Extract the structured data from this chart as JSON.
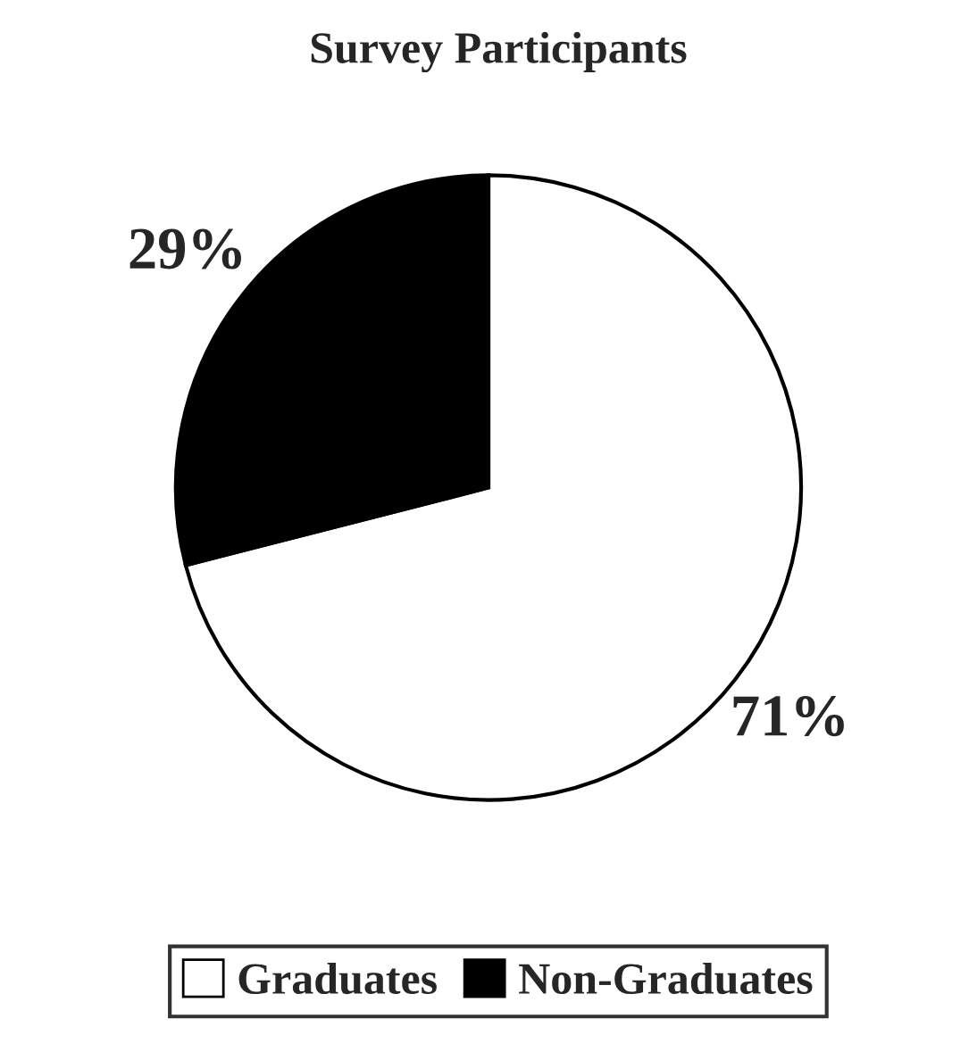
{
  "chart_data": {
    "type": "pie",
    "title": "Survey Participants",
    "categories": [
      "Graduates",
      "Non-Graduates"
    ],
    "values": [
      71,
      29
    ],
    "colors": [
      "#ffffff",
      "#000000"
    ],
    "value_labels": [
      "71%",
      "29%"
    ],
    "legend": "bottom"
  }
}
